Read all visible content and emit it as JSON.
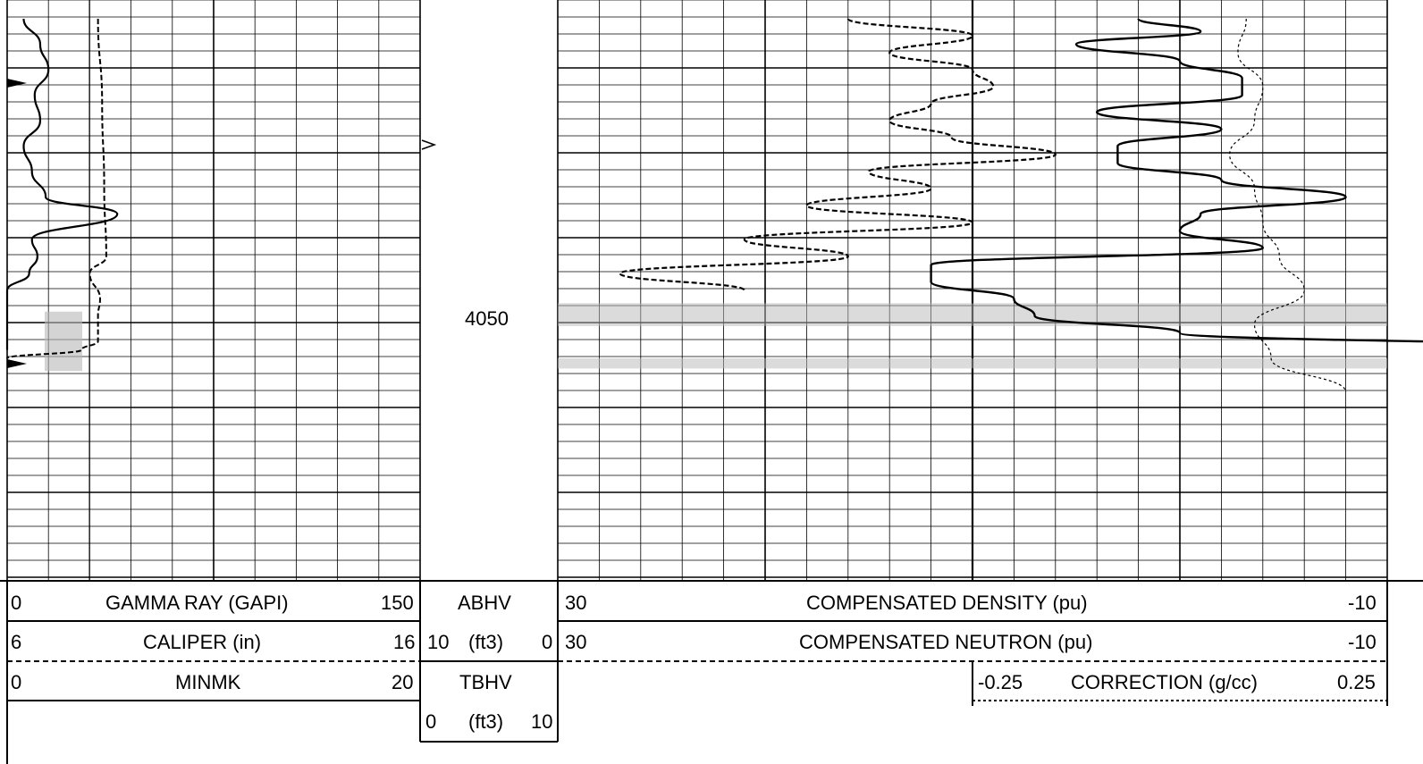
{
  "depth_label": "4050",
  "colors": {
    "ink": "#000000",
    "grid": "#000000",
    "shade": "#b8b8b8",
    "background": "#ffffff"
  },
  "headers": {
    "track1": [
      {
        "left": "0",
        "name": "GAMMA RAY (GAPI)",
        "right": "150"
      },
      {
        "left": "6",
        "name": "CALIPER (in)",
        "right": "16"
      },
      {
        "left": "0",
        "name": "MINMK",
        "right": "20"
      }
    ],
    "depth_track": [
      {
        "name": "ABHV"
      },
      {
        "left": "10",
        "name": "(ft3)",
        "right": "0"
      },
      {
        "name": "TBHV"
      },
      {
        "left": "0",
        "name": "(ft3)",
        "right": "10"
      }
    ],
    "track2": [
      {
        "left": "30",
        "name": "COMPENSATED DENSITY (pu)",
        "right": "-10"
      },
      {
        "left": "30",
        "name": "COMPENSATED NEUTRON (pu)",
        "right": "-10"
      },
      {
        "left": "-0.25",
        "name": "CORRECTION (g/cc)",
        "right": "0.25"
      }
    ]
  },
  "chart_data": {
    "type": "line",
    "depth_axis": {
      "marked_depth": 4050
    },
    "track1": {
      "gamma_ray": {
        "range": [
          0,
          150
        ],
        "depth": [
          0,
          0.3,
          0.6,
          0.9,
          1.2,
          1.5,
          1.8,
          2.1,
          2.3,
          2.6,
          2.8,
          3.0,
          3.2,
          3.4,
          3.6,
          3.9
        ],
        "values": [
          6,
          12,
          15,
          10,
          12,
          6,
          9,
          14,
          40,
          9,
          11,
          8,
          0,
          0,
          0,
          0
        ]
      },
      "caliper": {
        "range": [
          6,
          16
        ],
        "depth": [
          0,
          1.0,
          2.0,
          2.8,
          3.0,
          3.3,
          3.5,
          3.8,
          3.9,
          4.0
        ],
        "values": [
          8.2,
          8.3,
          8.35,
          8.4,
          8.0,
          8.25,
          8.2,
          8.2,
          7.8,
          6.0
        ]
      },
      "shaded_interval": {
        "from": 3.45,
        "to": 4.15
      }
    },
    "track2": {
      "density": {
        "range": [
          30,
          -10
        ],
        "depth": [
          0,
          0.15,
          0.3,
          0.5,
          0.7,
          0.9,
          1.1,
          1.3,
          1.5,
          1.7,
          1.9,
          2.1,
          2.3,
          2.5,
          2.7,
          2.9,
          3.1,
          3.3,
          3.5,
          3.7,
          3.9
        ],
        "values": [
          2,
          -1,
          5,
          0,
          -3,
          -3,
          4,
          -2,
          3,
          3,
          -2,
          -8,
          -1,
          0,
          -4,
          12,
          12,
          8,
          7,
          0,
          -23
        ]
      },
      "neutron": {
        "range": [
          30,
          -10
        ],
        "depth": [
          0,
          0.2,
          0.4,
          0.6,
          0.8,
          1.0,
          1.2,
          1.4,
          1.6,
          1.8,
          2.0,
          2.2,
          2.4,
          2.6,
          2.8,
          3.0,
          3.2
        ],
        "values": [
          16,
          10,
          14,
          10,
          9,
          12,
          14,
          11,
          6,
          15,
          12,
          18,
          10,
          21,
          16,
          27,
          21
        ]
      },
      "correction": {
        "range": [
          -0.25,
          0.25
        ],
        "depth": [
          0,
          0.4,
          0.8,
          1.2,
          1.6,
          2.0,
          2.4,
          2.8,
          3.2,
          3.6,
          4.0,
          4.4
        ],
        "values": [
          0.08,
          0.07,
          0.1,
          0.09,
          0.06,
          0.09,
          0.1,
          0.12,
          0.15,
          0.09,
          0.11,
          0.2
        ]
      },
      "shaded_intervals": [
        {
          "from": 3.35,
          "to": 3.62
        },
        {
          "from": 4.0,
          "to": 4.12
        }
      ]
    }
  }
}
